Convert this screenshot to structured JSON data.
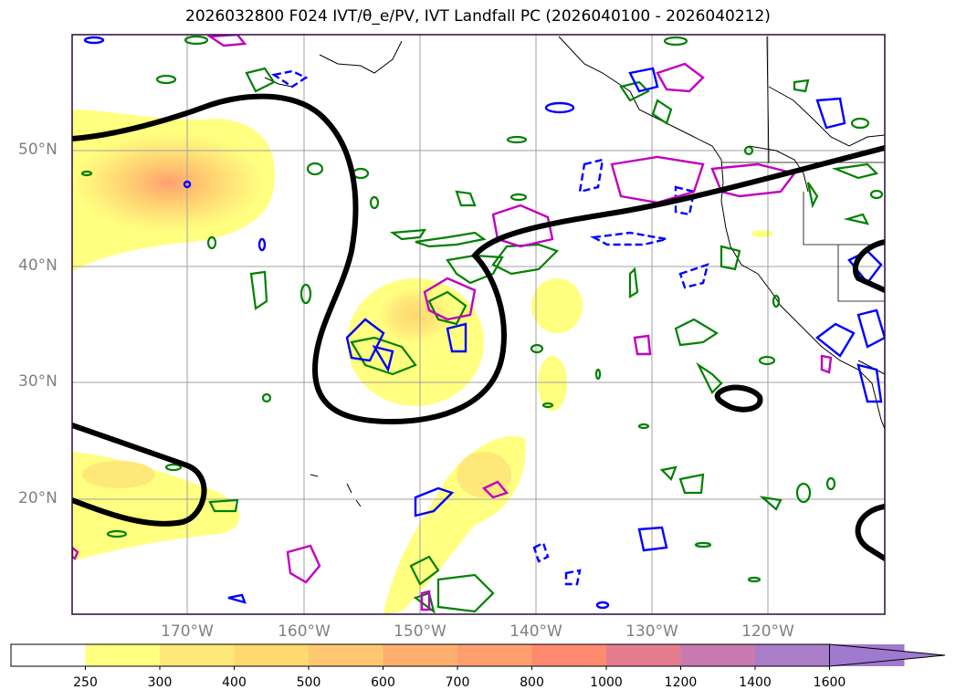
{
  "title": "2026032800 F024 IVT/θ_e/PV, IVT Landfall PC (2026040100 - 2026040212)",
  "map": {
    "lat_labels": [
      "50°N",
      "40°N",
      "30°N",
      "20°N"
    ],
    "lon_labels": [
      "170°W",
      "160°W",
      "150°W",
      "140°W",
      "130°W",
      "120°W"
    ],
    "grid": true,
    "frame_color": "#2b0a3d",
    "contour_colors": {
      "black_thick": "#000000",
      "theta_e": "#008000",
      "pv_positive": "#0000ff",
      "pv_other": "#c000c0",
      "coastline": "#000000"
    }
  },
  "colorbar": {
    "levels": [
      "250",
      "300",
      "400",
      "500",
      "600",
      "700",
      "800",
      "1000",
      "1200",
      "1400",
      "1600"
    ],
    "colors": [
      "#ffffff",
      "#ffff80",
      "#ffe87a",
      "#ffd870",
      "#ffc870",
      "#ffb070",
      "#ff9f70",
      "#ff8a70",
      "#e57c90",
      "#c77ab0",
      "#a97dc8",
      "#a07ad0"
    ],
    "extend": "max"
  }
}
